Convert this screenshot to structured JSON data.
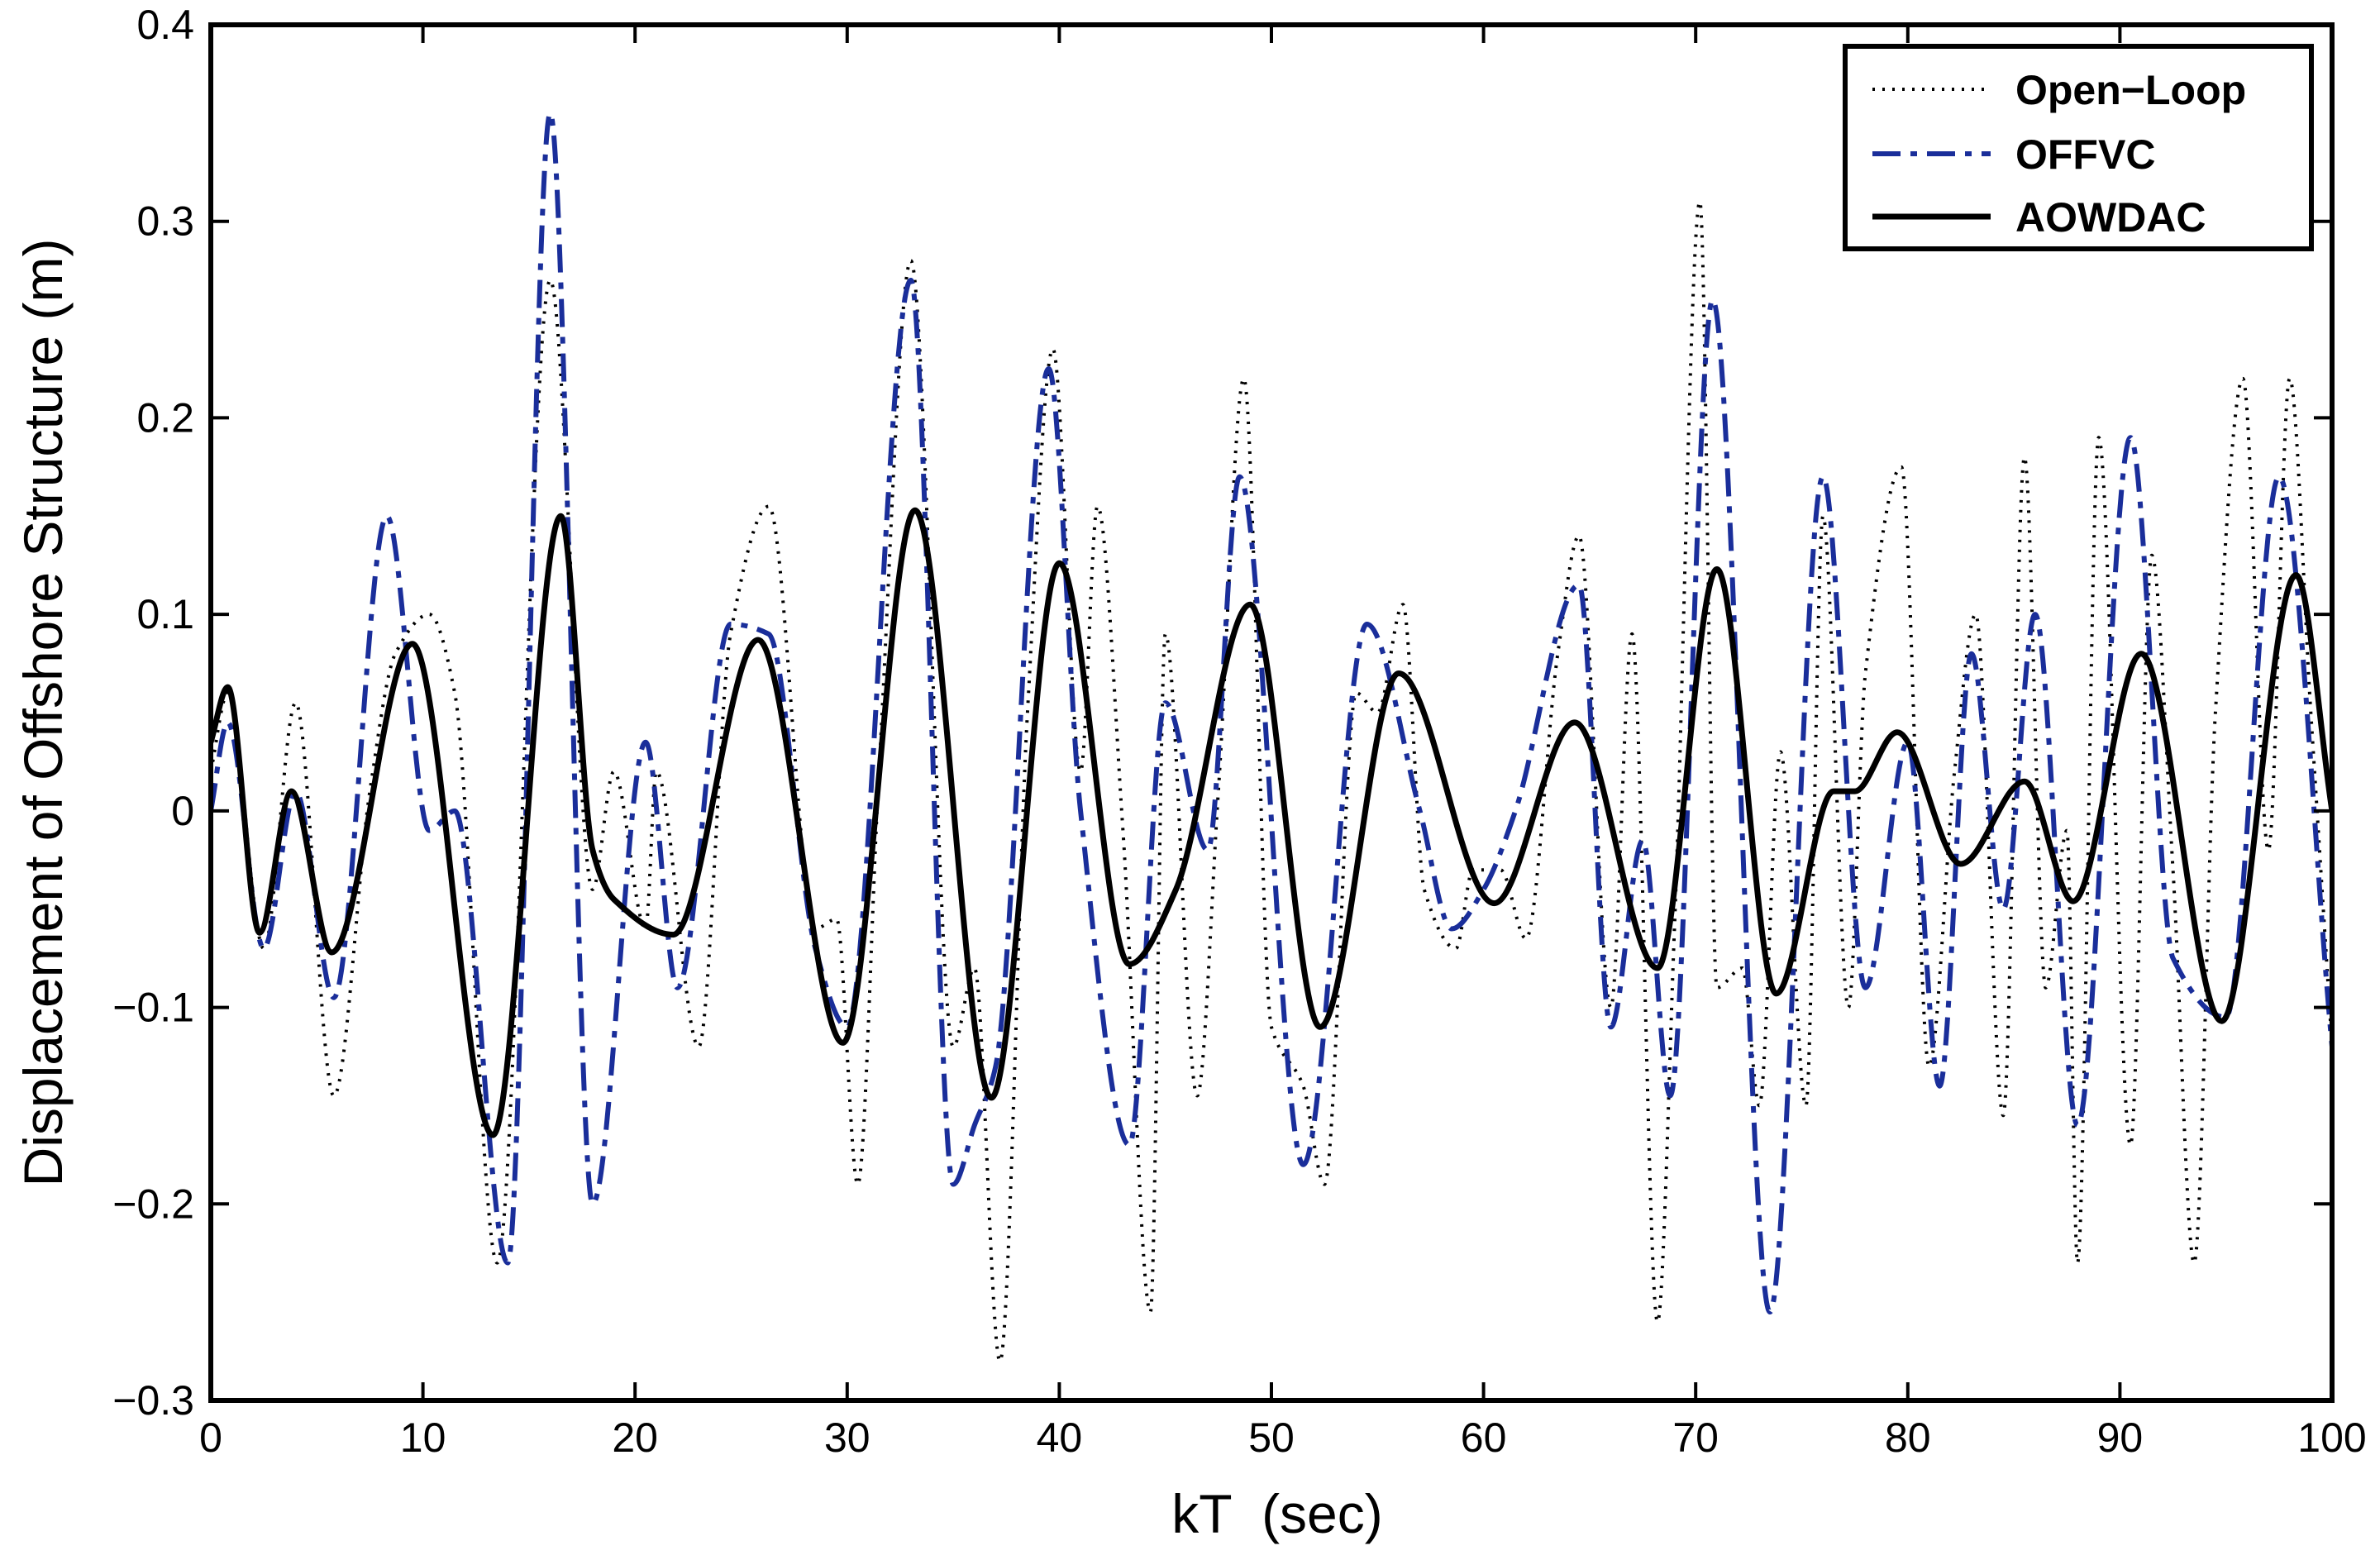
{
  "chart_data": {
    "type": "line",
    "title": "",
    "xlabel": "kT  (sec)",
    "ylabel": "Displacement of Offshore Structure (m)",
    "xlim": [
      0,
      100
    ],
    "ylim": [
      -0.3,
      0.4
    ],
    "xticks": [
      0,
      10,
      20,
      30,
      40,
      50,
      60,
      70,
      80,
      90,
      100
    ],
    "yticks": [
      -0.3,
      -0.2,
      -0.1,
      0,
      0.1,
      0.2,
      0.3,
      0.4
    ],
    "xtick_labels": [
      "0",
      "10",
      "20",
      "30",
      "40",
      "50",
      "60",
      "70",
      "80",
      "90",
      "100"
    ],
    "ytick_labels": [
      "−0.3",
      "−0.2",
      "−0.1",
      "0",
      "0.1",
      "0.2",
      "0.3",
      "0.4"
    ],
    "grid": false,
    "legend_position": "top-right",
    "series": [
      {
        "name": "Open−Loop",
        "color": "#000000",
        "style": "dotted",
        "x": [
          0,
          0.8,
          2.5,
          4.0,
          5.8,
          7.5,
          8.7,
          10.3,
          11.5,
          13.5,
          16.0,
          18.0,
          19.0,
          20.5,
          21.0,
          23.0,
          24.5,
          26.3,
          28.5,
          29.5,
          30.5,
          31.5,
          33.0,
          35.0,
          36.0,
          37.2,
          38.5,
          39.7,
          41.0,
          41.8,
          43.0,
          44.3,
          45.0,
          46.5,
          47.5,
          48.7,
          50.0,
          51.5,
          52.5,
          54.0,
          55.0,
          56.2,
          57.2,
          58.7,
          59.5,
          60.8,
          62.0,
          63.5,
          64.5,
          66.0,
          67.0,
          68.2,
          69.0,
          70.2,
          71.0,
          72.2,
          73.0,
          74.0,
          75.2,
          76.0,
          77.2,
          78.0,
          79.7,
          81.0,
          82.2,
          83.2,
          84.5,
          85.5,
          86.5,
          87.5,
          88.0,
          89.0,
          90.5,
          91.5,
          92.5,
          93.5,
          94.5,
          95.8,
          97.0,
          98.0,
          99.0,
          100
        ],
        "y": [
          0.02,
          0.06,
          -0.07,
          0.055,
          -0.145,
          0.01,
          0.08,
          0.1,
          0.06,
          -0.23,
          0.27,
          -0.04,
          0.02,
          -0.06,
          0.02,
          -0.12,
          0.09,
          0.155,
          -0.06,
          -0.055,
          -0.19,
          0.02,
          0.28,
          -0.12,
          -0.08,
          -0.28,
          0.05,
          0.235,
          0.02,
          0.155,
          -0.01,
          -0.255,
          0.09,
          -0.145,
          0.01,
          0.22,
          -0.11,
          -0.14,
          -0.19,
          0.06,
          0.05,
          0.105,
          -0.04,
          -0.07,
          -0.03,
          -0.03,
          -0.065,
          0.08,
          0.14,
          -0.1,
          0.09,
          -0.26,
          -0.06,
          0.31,
          -0.09,
          -0.08,
          -0.15,
          0.03,
          -0.15,
          0.15,
          -0.1,
          0.07,
          0.175,
          -0.13,
          0.02,
          0.1,
          -0.155,
          0.18,
          -0.09,
          -0.01,
          -0.23,
          0.19,
          -0.17,
          0.13,
          -0.03,
          -0.23,
          0.05,
          0.22,
          -0.02,
          0.22,
          0.05,
          -0.12
        ]
      },
      {
        "name": "OFFVC",
        "color": "#1a2e9a",
        "style": "dashdot",
        "x": [
          0,
          0.8,
          2.5,
          4.0,
          5.8,
          8.3,
          10.3,
          11.5,
          14.0,
          16.0,
          18.0,
          20.5,
          22.0,
          24.5,
          26.3,
          28.5,
          30.0,
          33.0,
          35.0,
          36.0,
          37.0,
          39.5,
          41.0,
          43.3,
          45.0,
          47.0,
          48.5,
          51.5,
          54.5,
          57.0,
          58.5,
          60.0,
          61.5,
          64.5,
          66.0,
          67.5,
          68.8,
          70.8,
          73.5,
          76.0,
          78.0,
          80.0,
          81.5,
          83.0,
          84.5,
          86.0,
          88.0,
          90.5,
          92.5,
          95.0,
          97.5,
          100
        ],
        "y": [
          0.0,
          0.045,
          -0.07,
          0.01,
          -0.095,
          0.15,
          -0.01,
          0.0,
          -0.23,
          0.355,
          -0.2,
          0.035,
          -0.09,
          0.095,
          0.09,
          -0.07,
          -0.11,
          0.27,
          -0.19,
          -0.16,
          -0.13,
          0.225,
          0.0,
          -0.17,
          0.055,
          -0.02,
          0.17,
          -0.18,
          0.095,
          0.0,
          -0.06,
          -0.04,
          0.0,
          0.115,
          -0.11,
          -0.015,
          -0.145,
          0.26,
          -0.255,
          0.17,
          -0.09,
          0.035,
          -0.14,
          0.08,
          -0.05,
          0.1,
          -0.16,
          0.19,
          -0.075,
          -0.105,
          0.17,
          -0.12
        ]
      },
      {
        "name": "AOWDAC",
        "color": "#000000",
        "style": "solid",
        "x": [
          0,
          0.8,
          2.3,
          3.8,
          5.7,
          9.5,
          13.3,
          16.5,
          18.0,
          19.0,
          21.8,
          25.8,
          29.8,
          33.2,
          36.8,
          40.0,
          43.3,
          45.5,
          49.0,
          52.3,
          56.0,
          60.5,
          64.3,
          68.2,
          71.0,
          73.8,
          76.5,
          77.5,
          79.5,
          82.5,
          85.5,
          87.8,
          91.0,
          94.8,
          98.3,
          100
        ],
        "y": [
          0.035,
          0.063,
          -0.062,
          0.01,
          -0.072,
          0.085,
          -0.165,
          0.15,
          -0.02,
          -0.045,
          -0.063,
          0.087,
          -0.118,
          0.153,
          -0.146,
          0.126,
          -0.078,
          -0.04,
          0.105,
          -0.11,
          0.07,
          -0.047,
          0.045,
          -0.08,
          0.123,
          -0.093,
          0.01,
          0.01,
          0.04,
          -0.027,
          0.015,
          -0.046,
          0.08,
          -0.107,
          0.12,
          0.0
        ]
      }
    ]
  }
}
